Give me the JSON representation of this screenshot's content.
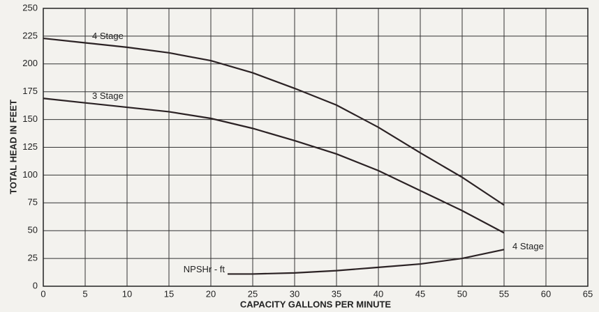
{
  "chart_data": {
    "type": "line",
    "xlabel": "CAPACITY GALLONS PER MINUTE",
    "ylabel": "TOTAL HEAD IN FEET",
    "xlim": [
      0,
      65
    ],
    "xticks": [
      0,
      5,
      10,
      15,
      20,
      25,
      30,
      35,
      40,
      45,
      50,
      55,
      60,
      65
    ],
    "ylim": [
      0,
      250
    ],
    "yticks": [
      0,
      25,
      50,
      75,
      100,
      125,
      150,
      175,
      200,
      225,
      250
    ],
    "grid": true,
    "series": [
      {
        "name": "4 Stage",
        "color": "#2b2224",
        "x": [
          0,
          5,
          10,
          15,
          20,
          25,
          30,
          35,
          40,
          45,
          50,
          55
        ],
        "values": [
          223,
          219,
          215,
          210,
          203,
          192,
          178,
          163,
          143,
          120,
          98,
          73
        ]
      },
      {
        "name": "3 Stage",
        "color": "#2b2224",
        "x": [
          0,
          5,
          10,
          15,
          20,
          25,
          30,
          35,
          40,
          45,
          50,
          55
        ],
        "values": [
          169,
          165,
          161,
          157,
          151,
          142,
          131,
          119,
          104,
          86,
          68,
          48
        ]
      },
      {
        "name": "NPSHr - ft",
        "color": "#2b2224",
        "x": [
          22,
          25,
          30,
          35,
          40,
          45,
          50,
          55
        ],
        "values": [
          11,
          11,
          12,
          14,
          17,
          20,
          25,
          33
        ]
      }
    ],
    "annotation": "4 Stage"
  }
}
